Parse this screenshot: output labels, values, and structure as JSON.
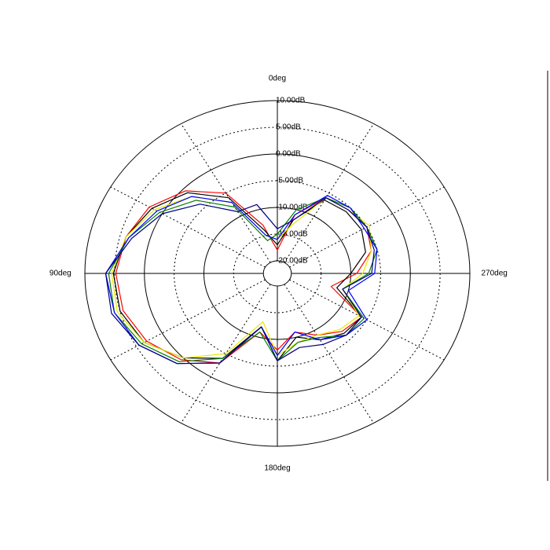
{
  "chart_data": {
    "type": "polar",
    "theta": [
      0,
      15,
      30,
      45,
      60,
      75,
      90,
      105,
      120,
      135,
      150,
      165,
      180,
      195,
      210,
      225,
      240,
      255,
      270,
      285,
      300,
      315,
      330,
      345
    ],
    "rlim": [
      -20,
      10
    ],
    "rticks": [
      {
        "value": -20,
        "label": "-20.00dB"
      },
      {
        "value": -15,
        "label": "-15.00dB"
      },
      {
        "value": -10,
        "label": "-10.00dB"
      },
      {
        "value": -5,
        "label": "-5.00dB"
      },
      {
        "value": 0,
        "label": "0.00dB"
      },
      {
        "value": 5,
        "label": "5.00dB"
      },
      {
        "value": 10,
        "label": "10.00dB"
      }
    ],
    "thetaticks": [
      {
        "value": 0,
        "label": "0deg"
      },
      {
        "value": 90,
        "label": "90deg"
      },
      {
        "value": 180,
        "label": "180deg"
      },
      {
        "value": 270,
        "label": "270deg"
      }
    ],
    "theta_minor_ticks": [
      30,
      60,
      120,
      150,
      210,
      240,
      300,
      330
    ],
    "series": [
      {
        "color": "#ff0000",
        "values": [
          -18,
          -13,
          -5,
          -0.5,
          2.5,
          4,
          4.8,
          4.5,
          3,
          0.5,
          -3,
          -11,
          -8,
          -11,
          -9,
          -7,
          -6,
          -13,
          -9,
          -6,
          -5,
          -5.5,
          -6,
          -11
        ]
      },
      {
        "color": "#000000",
        "values": [
          -17,
          -14,
          -6,
          -1,
          2,
          4,
          5.2,
          5,
          3.5,
          0,
          -4,
          -12,
          -6,
          -10,
          -8,
          -6.5,
          -6,
          -12,
          -10,
          -7,
          -6,
          -6,
          -6.5,
          -12
        ]
      },
      {
        "color": "#e8e800",
        "values": [
          -16,
          -15,
          -7,
          -2,
          1.5,
          4,
          5.5,
          5.5,
          3.5,
          0,
          -5,
          -13,
          -7,
          -9,
          -9,
          -7.5,
          -6.5,
          -11,
          -8,
          -6,
          -4.5,
          -5.5,
          -6,
          -13
        ]
      },
      {
        "color": "#008000",
        "values": [
          -15,
          -16,
          -8,
          -3,
          0.5,
          3.5,
          6,
          6,
          4,
          1,
          -4,
          -11,
          -6,
          -9,
          -8.5,
          -6,
          -5.5,
          -11,
          -7,
          -5,
          -5,
          -5,
          -6,
          -10
        ]
      },
      {
        "color": "#0000ff",
        "values": [
          -16,
          -15,
          -7,
          -2,
          1,
          3.5,
          6.5,
          6,
          4.5,
          1.5,
          -3,
          -12,
          -7,
          -11,
          -8,
          -6,
          -5,
          -10,
          -6,
          -5,
          -5.5,
          -5,
          -5.5,
          -11
        ]
      },
      {
        "color": "#000080",
        "values": [
          -14,
          -9,
          -9,
          -4,
          0,
          3,
          6.5,
          6.5,
          4.5,
          1.5,
          -3,
          -12,
          -6,
          -8,
          -7,
          -6,
          -6,
          -11,
          -6.5,
          -5.5,
          -5,
          -5.5,
          -6,
          -12
        ]
      }
    ]
  }
}
